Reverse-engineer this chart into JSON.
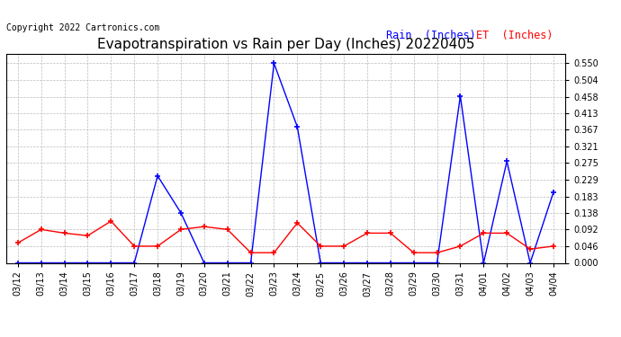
{
  "title": "Evapotranspiration vs Rain per Day (Inches) 20220405",
  "copyright": "Copyright 2022 Cartronics.com",
  "legend_rain": "Rain  (Inches)",
  "legend_et": "ET  (Inches)",
  "dates": [
    "03/12",
    "03/13",
    "03/14",
    "03/15",
    "03/16",
    "03/17",
    "03/18",
    "03/19",
    "03/20",
    "03/21",
    "03/22",
    "03/23",
    "03/24",
    "03/25",
    "03/26",
    "03/27",
    "03/28",
    "03/29",
    "03/30",
    "03/31",
    "04/01",
    "04/02",
    "04/03",
    "04/04"
  ],
  "rain": [
    0.0,
    0.0,
    0.0,
    0.0,
    0.0,
    0.0,
    0.24,
    0.138,
    0.0,
    0.0,
    0.0,
    0.55,
    0.375,
    0.0,
    0.0,
    0.0,
    0.0,
    0.0,
    0.0,
    0.46,
    0.0,
    0.28,
    0.0,
    0.195
  ],
  "et": [
    0.055,
    0.092,
    0.082,
    0.075,
    0.115,
    0.046,
    0.046,
    0.092,
    0.1,
    0.092,
    0.028,
    0.028,
    0.11,
    0.046,
    0.046,
    0.082,
    0.082,
    0.028,
    0.028,
    0.046,
    0.082,
    0.082,
    0.038,
    0.046
  ],
  "ylim": [
    0.0,
    0.576
  ],
  "yticks": [
    0.0,
    0.046,
    0.092,
    0.138,
    0.183,
    0.229,
    0.275,
    0.321,
    0.367,
    0.413,
    0.458,
    0.504,
    0.55
  ],
  "rain_color": "#0000ff",
  "et_color": "#ff0000",
  "title_color": "#000000",
  "copyright_color": "#000000",
  "background_color": "#ffffff",
  "grid_color": "#bbbbbb",
  "title_fontsize": 11,
  "axis_fontsize": 7,
  "legend_fontsize": 8.5,
  "copyright_fontsize": 7
}
